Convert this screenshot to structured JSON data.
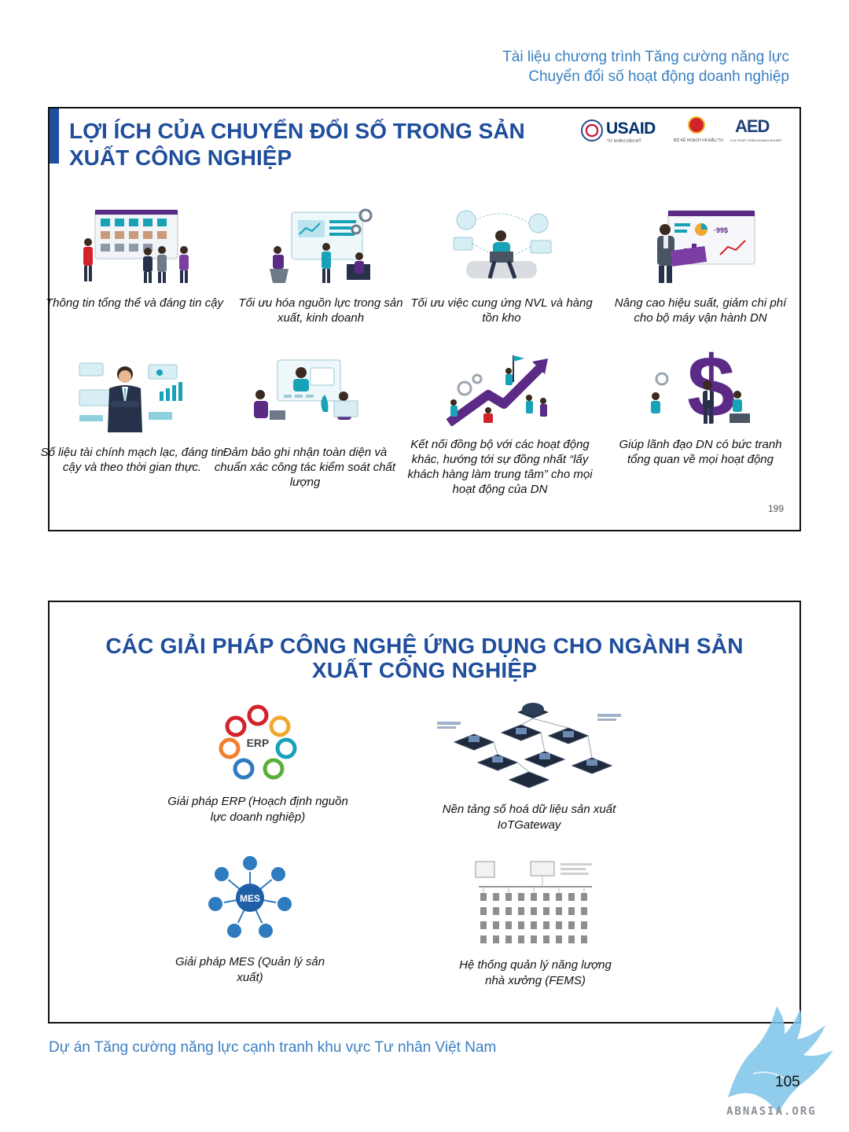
{
  "header": {
    "line1": "Tài liệu chương trình Tăng cường năng lực",
    "line2": "Chuyển đổi số hoạt động doanh nghiệp"
  },
  "slide1": {
    "title": "LỢI ÍCH CỦA CHUYỂN ĐỔI SỐ TRONG SẢN XUẤT CÔNG NGHIỆP",
    "logos": {
      "usaid_word": "USAID",
      "usaid_sub": "TỪ NHÂN DÂN MỸ",
      "mpi_sub": "BỘ KẾ HOẠCH VÀ ĐẦU TƯ",
      "aed_mark": "AED",
      "aed_sub": "CỤC PHÁT TRIỂN DOANH NGHIỆP"
    },
    "benefits": [
      {
        "caption": "Thông tin tổng thể và đáng tin cậy",
        "icon": "dashboard-team-illustration"
      },
      {
        "caption": "Tối ưu hóa nguồn lực trong sản xuất, kinh doanh",
        "icon": "resource-optimization-illustration"
      },
      {
        "caption": "Tối ưu việc cung ứng NVL và hàng tồn kho",
        "icon": "supply-inventory-illustration"
      },
      {
        "caption": "Nâng cao hiệu suất, giảm chi phí cho bộ máy vận hành DN",
        "icon": "performance-dashboard-illustration"
      },
      {
        "caption": "Số liệu tài chính mạch lạc, đáng tin cậy và theo thời gian thực.",
        "icon": "financial-data-illustration"
      },
      {
        "caption": "Đảm bảo ghi nhận toàn diện và chuẩn xác công tác kiểm soát chất lượng",
        "icon": "quality-control-illustration"
      },
      {
        "caption": "Kết nối đồng bộ với các hoạt động khác, hướng tới sự đồng nhất “lấy khách hàng làm trung tâm” cho mọi hoạt động của DN",
        "icon": "growth-arrow-illustration"
      },
      {
        "caption": "Giúp lãnh đạo DN có bức tranh tổng quan về mọi hoạt động",
        "icon": "dollar-overview-illustration"
      }
    ],
    "slide_number": "199"
  },
  "slide2": {
    "title_line1": "CÁC GIẢI PHÁP CÔNG NGHỆ ỨNG DỤNG CHO NGÀNH SẢN",
    "title_line2": "XUẤT CÔNG NGHIỆP",
    "erp_center": "ERP",
    "mes_center": "MES",
    "solutions": [
      {
        "caption": "Giải pháp ERP (Hoạch định nguồn lực doanh nghiệp)",
        "icon": "erp-diagram-icon"
      },
      {
        "caption": "Nền tảng số hoá dữ liệu sản xuất IoTGateway",
        "icon": "iot-gateway-diagram-icon"
      },
      {
        "caption": "Giải pháp MES (Quản lý sản xuất)",
        "icon": "mes-diagram-icon"
      },
      {
        "caption": "Hệ thống quản lý năng lượng nhà xưởng (FEMS)",
        "icon": "fems-diagram-icon"
      }
    ]
  },
  "footer": {
    "project": "Dự án Tăng cường năng lực cạnh tranh khu vực Tư nhân Việt Nam",
    "page_number": "105",
    "watermark": "ABNASIA.ORG"
  },
  "colors": {
    "title_blue": "#1f4e9c",
    "header_blue": "#3a7fc1",
    "illus_teal": "#17a2b8",
    "illus_purple": "#5b2a86"
  }
}
